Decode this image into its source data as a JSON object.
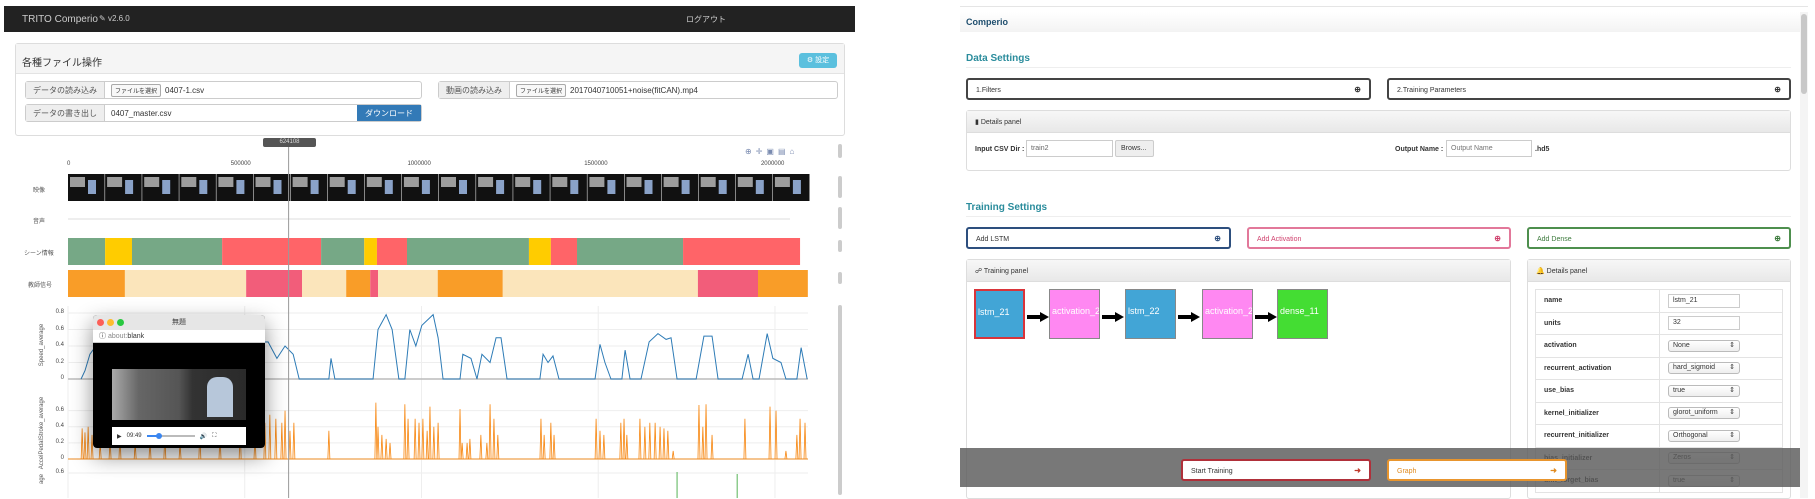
{
  "left_app": {
    "header": {
      "title": "TRITO Comperio",
      "version": "v2.6.0",
      "logout": "ログアウト"
    },
    "file_panel": {
      "title": "各種ファイル操作",
      "settings_button": "設定",
      "data_load": {
        "label": "データの読み込み",
        "choose": "ファイルを選択",
        "file": "0407-1.csv"
      },
      "video_load": {
        "label": "動画の読み込み",
        "choose": "ファイルを選択",
        "file": "2017040710051+noise(fitCAN).mp4"
      },
      "data_export": {
        "label": "データの書き出し",
        "value": "0407_master.csv",
        "download": "ダウンロード"
      }
    },
    "cursor_label": "624108",
    "toolbar_icons": [
      "zoom-icon",
      "pan-icon",
      "zoom-in-icon",
      "zoom-out-icon",
      "home-icon"
    ],
    "rows": {
      "video": "映像",
      "audio": "音声",
      "scene": "シーン情報",
      "teacher": "教師信号"
    },
    "popup": {
      "title": "無題",
      "address_prefix": "about:",
      "address_page": "blank",
      "time": "09:49",
      "progress": 0.25
    }
  },
  "chart_data": [
    {
      "type": "timeline",
      "x_ticks": [
        "0",
        "500000",
        "1000000",
        "1500000",
        "2000000"
      ],
      "xlim": [
        0,
        2100000
      ],
      "colors": {
        "green": "#76a886",
        "yellow": "#ffcc00",
        "red": "#ff6468",
        "orange": "#f99d28",
        "beige": "#fbe5bb",
        "pink": "#f25d7a"
      },
      "scene": [
        [
          0,
          105000,
          "green"
        ],
        [
          105000,
          181000,
          "yellow"
        ],
        [
          181000,
          436000,
          "green"
        ],
        [
          436000,
          716000,
          "red"
        ],
        [
          716000,
          838000,
          "green"
        ],
        [
          838000,
          874000,
          "yellow"
        ],
        [
          874000,
          959000,
          "red"
        ],
        [
          959000,
          1304000,
          "green"
        ],
        [
          1304000,
          1366000,
          "yellow"
        ],
        [
          1366000,
          1440000,
          "red"
        ],
        [
          1440000,
          1740000,
          "green"
        ],
        [
          1740000,
          2071000,
          "red"
        ]
      ],
      "teacher": [
        [
          0,
          161000,
          "orange"
        ],
        [
          161000,
          504000,
          "beige"
        ],
        [
          504000,
          662000,
          "pink"
        ],
        [
          662000,
          787000,
          "beige"
        ],
        [
          787000,
          855000,
          "orange"
        ],
        [
          855000,
          877000,
          "pink"
        ],
        [
          877000,
          1046000,
          "beige"
        ],
        [
          1046000,
          1230000,
          "orange"
        ],
        [
          1230000,
          1782000,
          "beige"
        ],
        [
          1782000,
          1952000,
          "pink"
        ],
        [
          1952000,
          2093000,
          "orange"
        ]
      ]
    },
    {
      "type": "line",
      "ylabel": "Speed_average",
      "y_ticks": [
        "0",
        "0.2",
        "0.4",
        "0.6",
        "0.8"
      ],
      "ylim": [
        0,
        0.8
      ],
      "color": "#2d7bb6",
      "points": [
        [
          37000,
          0
        ],
        [
          48000,
          0.1
        ],
        [
          62000,
          0.3
        ],
        [
          79000,
          0.4
        ],
        [
          232000,
          0.4
        ],
        [
          566000,
          0.45
        ],
        [
          591000,
          0.25
        ],
        [
          614000,
          0.4
        ],
        [
          637000,
          0.3
        ],
        [
          654000,
          0
        ],
        [
          738000,
          0
        ],
        [
          744000,
          0.25
        ],
        [
          755000,
          0
        ],
        [
          863000,
          0
        ],
        [
          877000,
          0.6
        ],
        [
          900000,
          0.78
        ],
        [
          917000,
          0.6
        ],
        [
          936000,
          0
        ],
        [
          953000,
          0
        ],
        [
          967000,
          0.6
        ],
        [
          984000,
          0.4
        ],
        [
          1001000,
          0.65
        ],
        [
          1033000,
          0.78
        ],
        [
          1047000,
          0.5
        ],
        [
          1061000,
          0
        ],
        [
          1109000,
          0
        ],
        [
          1117000,
          0.3
        ],
        [
          1140000,
          0.25
        ],
        [
          1157000,
          0
        ],
        [
          1171000,
          0.3
        ],
        [
          1194000,
          0.2
        ],
        [
          1211000,
          0.5
        ],
        [
          1225000,
          0.5
        ],
        [
          1242000,
          0
        ],
        [
          1335000,
          0
        ],
        [
          1344000,
          0.3
        ],
        [
          1358000,
          0.2
        ],
        [
          1372000,
          0.28
        ],
        [
          1389000,
          0
        ],
        [
          1491000,
          0
        ],
        [
          1505000,
          0.42
        ],
        [
          1519000,
          0.2
        ],
        [
          1536000,
          0
        ],
        [
          1567000,
          0
        ],
        [
          1576000,
          0.35
        ],
        [
          1590000,
          0
        ],
        [
          1621000,
          0
        ],
        [
          1644000,
          0.45
        ],
        [
          1669000,
          0.55
        ],
        [
          1692000,
          0.48
        ],
        [
          1706000,
          0.5
        ],
        [
          1723000,
          0
        ],
        [
          1777000,
          0
        ],
        [
          1799000,
          0.52
        ],
        [
          1822000,
          0.52
        ],
        [
          1839000,
          0
        ],
        [
          1907000,
          0
        ],
        [
          1924000,
          0.3
        ],
        [
          1938000,
          0
        ],
        [
          1955000,
          0
        ],
        [
          1978000,
          0.55
        ],
        [
          1994000,
          0.25
        ],
        [
          2017000,
          0.2
        ],
        [
          2031000,
          0
        ],
        [
          2062000,
          0
        ],
        [
          2074000,
          0.38
        ],
        [
          2091000,
          0
        ]
      ]
    },
    {
      "type": "line",
      "ylabel": "AccelPedalStroke_average",
      "y_ticks": [
        "0",
        "0.2",
        "0.4",
        "0.6"
      ],
      "ylim": [
        0,
        0.75
      ],
      "color": "#f7860f",
      "spikes": [
        [
          40000,
          0.38
        ],
        [
          48000,
          0.33
        ],
        [
          57000,
          0.4
        ],
        [
          68000,
          0.3
        ],
        [
          91000,
          0.2
        ],
        [
          119000,
          0.25
        ],
        [
          147000,
          0.3
        ],
        [
          190000,
          0.2
        ],
        [
          232000,
          0.25
        ],
        [
          274000,
          0.3
        ],
        [
          317000,
          0.2
        ],
        [
          373000,
          0.35
        ],
        [
          430000,
          0.3
        ],
        [
          487000,
          0.4
        ],
        [
          529000,
          0.3
        ],
        [
          557000,
          0.45
        ],
        [
          571000,
          0.55
        ],
        [
          588000,
          0.5
        ],
        [
          605000,
          0.45
        ],
        [
          614000,
          0.6
        ],
        [
          628000,
          0.35
        ],
        [
          639000,
          0.45
        ],
        [
          738000,
          0.35
        ],
        [
          871000,
          0.7
        ],
        [
          877000,
          0.4
        ],
        [
          888000,
          0.3
        ],
        [
          900000,
          0.25
        ],
        [
          911000,
          0.2
        ],
        [
          953000,
          0.68
        ],
        [
          962000,
          0.5
        ],
        [
          982000,
          0.5
        ],
        [
          993000,
          0.45
        ],
        [
          1004000,
          0.5
        ],
        [
          1016000,
          0.35
        ],
        [
          1024000,
          0.65
        ],
        [
          1035000,
          0.4
        ],
        [
          1047000,
          0.45
        ],
        [
          1109000,
          0.62
        ],
        [
          1115000,
          0.2
        ],
        [
          1129000,
          0.2
        ],
        [
          1137000,
          0.25
        ],
        [
          1168000,
          0.3
        ],
        [
          1185000,
          0.2
        ],
        [
          1194000,
          0.68
        ],
        [
          1205000,
          0.5
        ],
        [
          1216000,
          0.3
        ],
        [
          1338000,
          0.5
        ],
        [
          1347000,
          0.3
        ],
        [
          1366000,
          0.45
        ],
        [
          1375000,
          0.3
        ],
        [
          1494000,
          0.5
        ],
        [
          1505000,
          0.35
        ],
        [
          1516000,
          0.3
        ],
        [
          1564000,
          0.45
        ],
        [
          1573000,
          0.5
        ],
        [
          1581000,
          0.3
        ],
        [
          1618000,
          0.5
        ],
        [
          1632000,
          0.4
        ],
        [
          1646000,
          0.45
        ],
        [
          1661000,
          0.45
        ],
        [
          1675000,
          0.4
        ],
        [
          1686000,
          0.38
        ],
        [
          1697000,
          0.35
        ],
        [
          1712000,
          0.1
        ],
        [
          1785000,
          0.67
        ],
        [
          1796000,
          0.4
        ],
        [
          1805000,
          0.68
        ],
        [
          1822000,
          0.3
        ],
        [
          1915000,
          0.5
        ],
        [
          1986000,
          0.65
        ],
        [
          2003000,
          0.6
        ],
        [
          2031000,
          0.1
        ],
        [
          2062000,
          0.3
        ],
        [
          2071000,
          0.5
        ],
        [
          2085000,
          0.45
        ]
      ]
    },
    {
      "type": "line",
      "ylabel": "age",
      "y_ticks": [
        "0.6"
      ],
      "color": "#2ca02c",
      "spikes": [
        [
          1723000,
          0.65
        ],
        [
          1893000,
          0.6
        ]
      ]
    }
  ],
  "right_app": {
    "title": "Comperio",
    "data_settings": {
      "heading": "Data Settings",
      "filters": "1.Filters",
      "training_params": "2.Training Parameters",
      "details": {
        "title": "Details panel",
        "input_csv_label": "Input CSV Dir :",
        "input_csv_value": "train2",
        "browse": "Brows...",
        "output_label": "Output Name :",
        "output_placeholder": "Output Name",
        "ext": ".hd5"
      }
    },
    "training_settings": {
      "heading": "Training Settings",
      "add_lstm": "Add LSTM",
      "add_activation": "Add Activation",
      "add_dense": "Add Dense"
    },
    "training_panel": {
      "title": "Training panel",
      "nodes": [
        {
          "label": "lstm_21",
          "color": "#42a5d6",
          "selected": true
        },
        {
          "label": "activation_21",
          "color": "#ff88f2"
        },
        {
          "label": "lstm_22",
          "color": "#42a5d6"
        },
        {
          "label": "activation_22",
          "color": "#ff88f2"
        },
        {
          "label": "dense_11",
          "color": "#44dd33"
        }
      ]
    },
    "details_panel": {
      "title": "Details panel",
      "rows": [
        {
          "key": "name",
          "value": "lstm_21",
          "kind": "input"
        },
        {
          "key": "units",
          "value": "32",
          "kind": "input"
        },
        {
          "key": "activation",
          "value": "None",
          "kind": "select"
        },
        {
          "key": "recurrent_activation",
          "value": "hard_sigmoid",
          "kind": "select"
        },
        {
          "key": "use_bias",
          "value": "true",
          "kind": "select"
        },
        {
          "key": "kernel_initializer",
          "value": "glorot_uniform",
          "kind": "select"
        },
        {
          "key": "recurrent_initializer",
          "value": "Orthogonal",
          "kind": "select"
        },
        {
          "key": "bias_initializer",
          "value": "Zeros",
          "kind": "select"
        },
        {
          "key": "unit_forget_bias",
          "value": "true",
          "kind": "select"
        }
      ]
    },
    "footer": {
      "start_training": "Start Training",
      "graph": "Graph"
    }
  }
}
